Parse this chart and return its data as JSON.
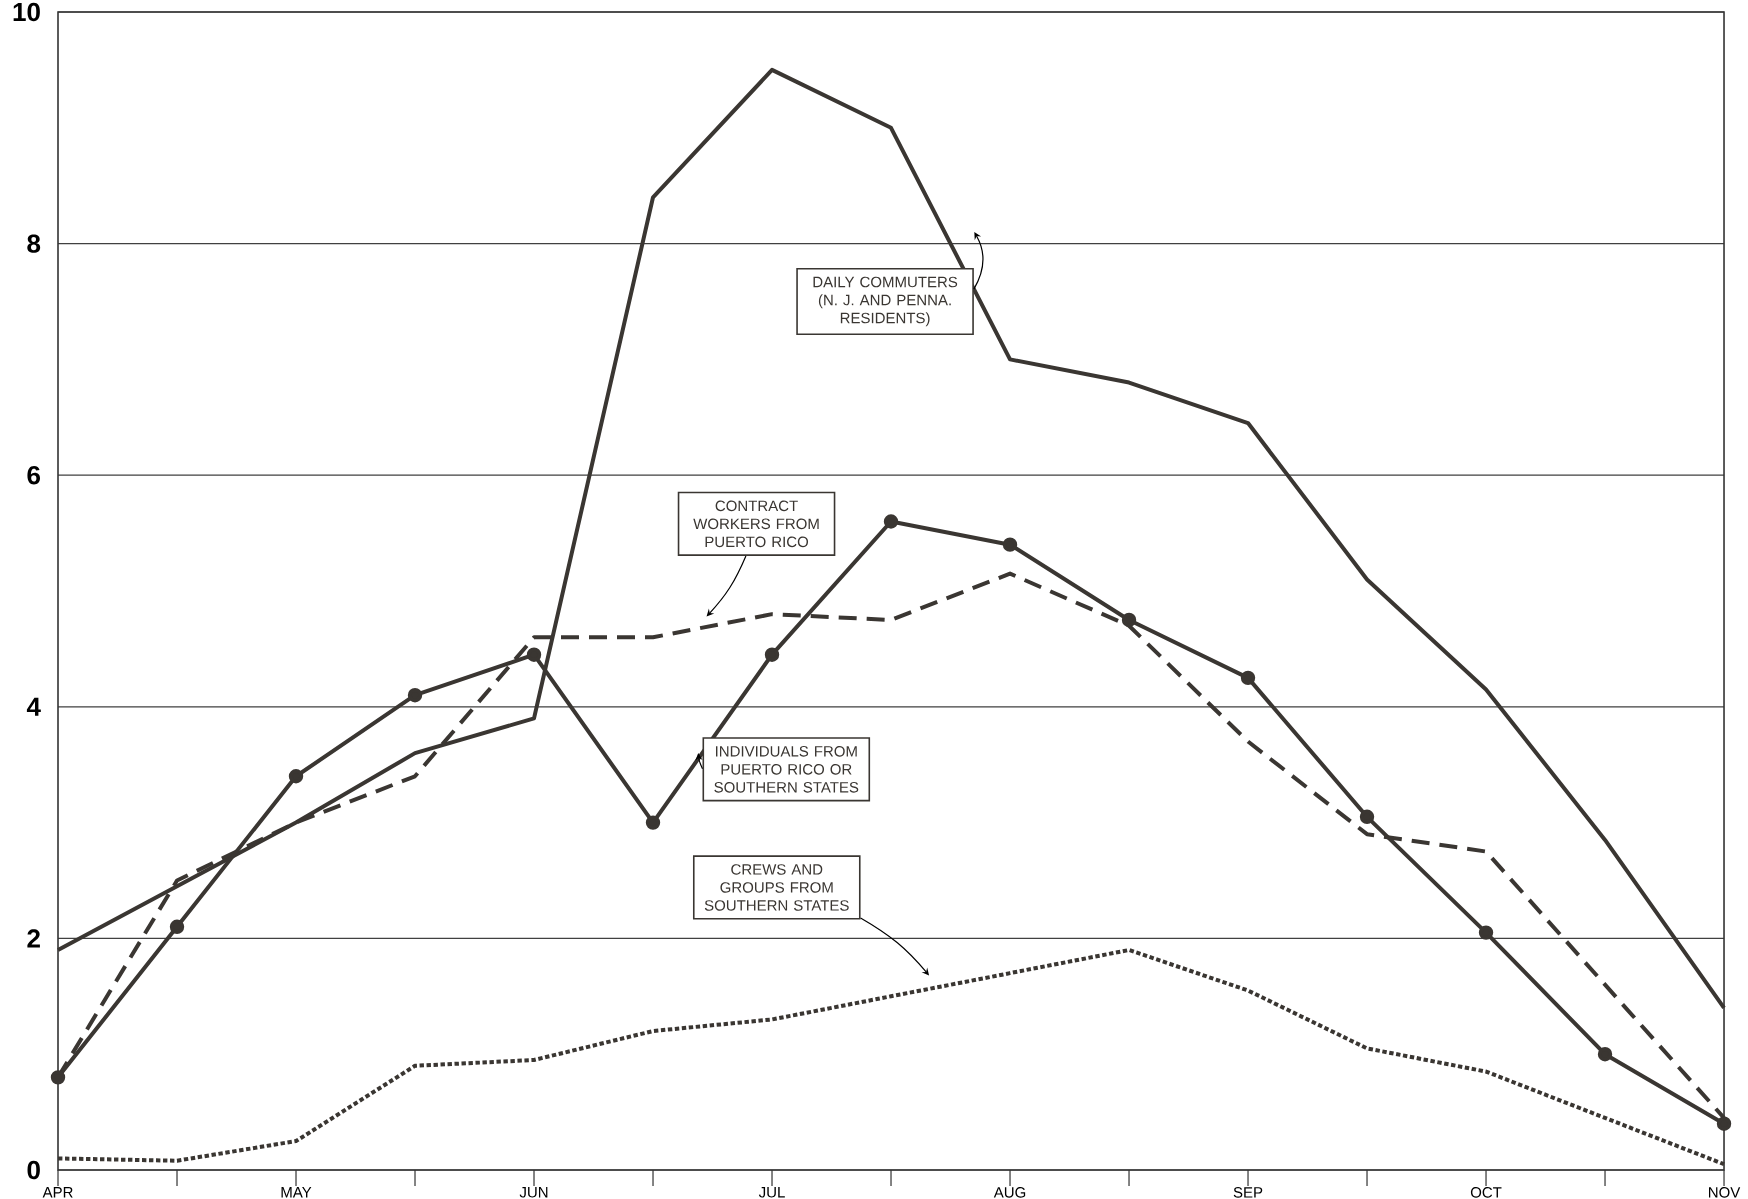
{
  "chart_data": {
    "type": "line",
    "categories": [
      "APR",
      null,
      "MAY",
      null,
      "JUN",
      null,
      "JUL",
      null,
      "AUG",
      null,
      "SEP",
      null,
      "OCT",
      null,
      "NOV"
    ],
    "ylim": [
      0,
      10
    ],
    "yticks": [
      0,
      2,
      4,
      6,
      8,
      10
    ],
    "grid": "y",
    "series": [
      {
        "name": "DAILY COMMUTERS (N. J. AND PENNA. RESIDENTS)",
        "color": "#3a3632",
        "line_style": "solid",
        "marker": "none",
        "values": [
          1.9,
          2.45,
          3.0,
          3.6,
          3.9,
          8.4,
          9.5,
          9.0,
          7.0,
          6.8,
          6.45,
          5.1,
          4.15,
          2.85,
          1.4
        ]
      },
      {
        "name": "CONTRACT WORKERS FROM PUERTO RICO",
        "color": "#3a3632",
        "line_style": "dashed",
        "marker": "none",
        "values": [
          0.8,
          2.5,
          3.0,
          3.4,
          4.6,
          4.6,
          4.8,
          4.75,
          5.15,
          4.7,
          3.7,
          2.9,
          2.75,
          1.6,
          0.45
        ]
      },
      {
        "name": "INDIVIDUALS FROM PUERTO RICO OR SOUTHERN STATES",
        "color": "#3a3632",
        "line_style": "solid",
        "marker": "circle",
        "values": [
          0.8,
          2.1,
          3.4,
          4.1,
          4.45,
          3.0,
          4.45,
          5.6,
          5.4,
          4.75,
          4.25,
          3.05,
          2.05,
          1.0,
          0.4
        ]
      },
      {
        "name": "CREWS AND GROUPS FROM SOUTHERN STATES",
        "color": "#3a3632",
        "line_style": "dotted",
        "marker": "none",
        "values": [
          0.1,
          0.08,
          0.25,
          0.9,
          0.95,
          1.2,
          1.3,
          1.5,
          1.7,
          1.9,
          1.55,
          1.05,
          0.85,
          0.45,
          0.05
        ]
      }
    ]
  }
}
